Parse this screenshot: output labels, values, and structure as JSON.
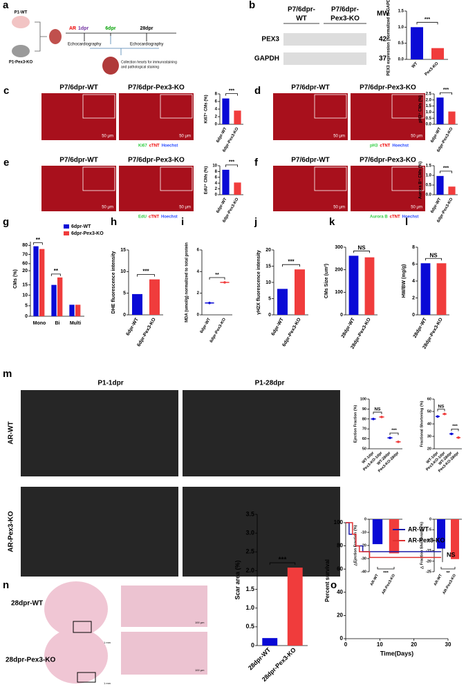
{
  "figure": {
    "panel_labels": [
      "a",
      "b",
      "c",
      "d",
      "e",
      "f",
      "g",
      "h",
      "i",
      "j",
      "k",
      "l",
      "m",
      "n",
      "o"
    ],
    "a": {
      "groups": [
        "P1-WT",
        "P1-Pex3-KO"
      ],
      "ar": "AR",
      "timepoints": [
        "1dpr",
        "6dpr",
        "28dpr"
      ],
      "echo": "Echocardiography",
      "collection": [
        "Collection hearts for immunostaining",
        "and pathological staining"
      ]
    },
    "b": {
      "columns": [
        [
          "P7/6dpr-",
          "WT"
        ],
        [
          "P7/6dpr-",
          "Pex3-KO"
        ]
      ],
      "mw": "MW",
      "rows": [
        {
          "name": "PEX3",
          "mw": 42
        },
        {
          "name": "GAPDH",
          "mw": 37
        }
      ]
    },
    "micrographs": [
      {
        "titles": [
          "P7/6dpr-WT",
          "P7/6dpr-Pex3-KO"
        ],
        "scale": "50 μm",
        "stains": [
          "Ki67",
          "cTNT",
          "Hoechst"
        ]
      },
      {
        "titles": [
          "P7/6dpr-WT",
          "P7/6dpr-Pex3-KO"
        ],
        "scale": "50 μm",
        "stains": [
          "pH3",
          "cTNT",
          "Hoechst"
        ]
      },
      {
        "titles": [
          "P7/6dpr-WT",
          "P7/6dpr-Pex3-KO"
        ],
        "scale": "50 μm",
        "stains": [
          "EdU",
          "cTNT",
          "Hoechst"
        ]
      },
      {
        "titles": [
          "P7/6dpr-WT",
          "P7/6dpr-Pex3-KO"
        ],
        "scale": "50 μm",
        "stains": [
          "Aurora B",
          "cTNT",
          "Hoechst"
        ]
      }
    ],
    "m": {
      "columns": [
        "P1-1dpr",
        "P1-28dpr"
      ],
      "rows": [
        "AR-WT",
        "AR-Pex3-KO"
      ]
    },
    "n": {
      "rows": [
        "28dpr-WT",
        "28dpr-Pex3-KO"
      ],
      "scales": [
        "1 mm",
        "100 μm"
      ]
    }
  },
  "chart_data": [
    {
      "type": "bar",
      "ylabel": "PEX3 expression (Normalized to GAPDH)",
      "categories": [
        "WT",
        "Pex3-KO"
      ],
      "values": [
        1.0,
        0.35
      ],
      "colors": [
        "#0a0ad6",
        "#f03c3c"
      ],
      "ylim": [
        0,
        1.5
      ],
      "yticks": [
        {
          "value": 0,
          "label": "0.0"
        },
        0.5,
        {
          "value": 1,
          "label": "1.0"
        },
        1.5
      ],
      "significance": "***"
    },
    {
      "type": "bar",
      "ylabel": "Ki67⁺ CMs (%)",
      "categories": [
        "6dpr-WT",
        "6dpr-Pex3-KO"
      ],
      "values": [
        6.8,
        3.6
      ],
      "colors": [
        "#0a0ad6",
        "#f03c3c"
      ],
      "ylim": [
        0,
        8
      ],
      "yticks": [
        0,
        2,
        4,
        6,
        8
      ],
      "significance": "***"
    },
    {
      "type": "bar",
      "ylabel": "pH3⁺ CMs (%)",
      "categories": [
        "6dpr-WT",
        "6dpr-Pex3-KO"
      ],
      "values": [
        2.2,
        1.05
      ],
      "colors": [
        "#0a0ad6",
        "#f03c3c"
      ],
      "ylim": [
        0,
        2.5
      ],
      "yticks": [
        {
          "value": 0,
          "label": "0.0"
        },
        0.5,
        {
          "value": 1,
          "label": "1.0"
        },
        1.5,
        {
          "value": 2,
          "label": "2.0"
        },
        2.5
      ],
      "significance": "***"
    },
    {
      "type": "bar",
      "ylabel": "EdU⁺ CMs (%)",
      "categories": [
        "6dpr-WT",
        "6dpr-Pex3-KO"
      ],
      "values": [
        8.6,
        4.2
      ],
      "colors": [
        "#0a0ad6",
        "#f03c3c"
      ],
      "ylim": [
        0,
        10
      ],
      "yticks": [
        0,
        2,
        4,
        6,
        8,
        10
      ],
      "significance": "***"
    },
    {
      "type": "bar",
      "ylabel": "Aurora B⁺ CMs (%)",
      "categories": [
        "6dpr-WT",
        "6dpr-Pex3-KO"
      ],
      "values": [
        0.97,
        0.42
      ],
      "colors": [
        "#0a0ad6",
        "#f03c3c"
      ],
      "ylim": [
        0,
        1.5
      ],
      "yticks": [
        {
          "value": 0,
          "label": "0.0"
        },
        0.5,
        {
          "value": 1,
          "label": "1.0"
        },
        1.5
      ],
      "significance": "***"
    },
    {
      "type": "bar",
      "ylabel": "CMs (%)",
      "categories": [
        "Mono",
        "Bi",
        "Multi"
      ],
      "series": [
        {
          "name": "6dpr-WT",
          "color": "#0a0ad6",
          "values": [
            79,
            15,
            5.5
          ]
        },
        {
          "name": "6dpr-Pex3-KO",
          "color": "#f03c3c",
          "values": [
            76,
            17,
            5.5
          ]
        }
      ],
      "ylim": [
        0,
        84
      ],
      "y_segments": [
        [
          0,
          15
        ],
        [
          15,
          21
        ],
        [
          58,
          84
        ]
      ],
      "yticks": [
        0,
        5,
        10,
        15,
        20,
        60,
        70,
        80
      ],
      "significance": [
        "**",
        "**"
      ]
    },
    {
      "type": "bar",
      "ylabel": "DHE fluorescence intensity",
      "categories": [
        "6dpr-WT",
        "6dpr-Pex3-KO"
      ],
      "values": [
        4.8,
        8.2
      ],
      "colors": [
        "#0a0ad6",
        "#f03c3c"
      ],
      "ylim": [
        0,
        15
      ],
      "yticks": [
        0,
        5,
        10,
        15
      ],
      "significance": "***"
    },
    {
      "type": "dot",
      "ylabel": "MDA (umol/g) normalized to total protein",
      "categories": [
        "6dpr-WT",
        "6dpr-Pex3-KO"
      ],
      "values": [
        1.1,
        3.0
      ],
      "colors": [
        "#0a0ad6",
        "#f03c3c"
      ],
      "ylim": [
        0,
        6
      ],
      "yticks": [
        0,
        2,
        4,
        6
      ],
      "significance": "**"
    },
    {
      "type": "bar",
      "ylabel": "γH2X fluorescence intensity",
      "categories": [
        "6dpr-WT",
        "6dpr-Pex3-KO"
      ],
      "values": [
        8,
        14
      ],
      "colors": [
        "#0a0ad6",
        "#f03c3c"
      ],
      "ylim": [
        0,
        20
      ],
      "yticks": [
        0,
        5,
        10,
        15,
        20
      ],
      "significance": "***"
    },
    {
      "type": "bar",
      "ylabel": "CMs Size (um²)",
      "categories": [
        "28dpr-WT",
        "28dpr-Pex3-KO"
      ],
      "values": [
        262,
        255
      ],
      "colors": [
        "#0a0ad6",
        "#f03c3c"
      ],
      "ylim": [
        0,
        300
      ],
      "yticks": [
        0,
        100,
        200,
        300
      ],
      "significance": "NS"
    },
    {
      "type": "bar",
      "ylabel": "HW/BW (mg/g)",
      "categories": [
        "28dpr-WT",
        "28dpr-Pex3-KO"
      ],
      "values": [
        6.1,
        6.1
      ],
      "colors": [
        "#0a0ad6",
        "#f03c3c"
      ],
      "ylim": [
        0,
        8
      ],
      "yticks": [
        0,
        2,
        4,
        6,
        8
      ],
      "significance": "NS"
    },
    {
      "type": "dot",
      "ylabel": "Ejection Fraction (%)",
      "categories": [
        "WT-1dpr",
        "Pex3-KO-1dpr",
        "WT-28dpr",
        "Pex3-KO-28dpr"
      ],
      "values": [
        80,
        82,
        61,
        57
      ],
      "colors": [
        "#0a0ad6",
        "#f03c3c",
        "#0a0ad6",
        "#f03c3c"
      ],
      "ylim": [
        50,
        100
      ],
      "yticks": [
        50,
        60,
        70,
        80,
        90,
        100
      ],
      "significance": [
        "NS",
        "***"
      ]
    },
    {
      "type": "dot",
      "ylabel": "Fractional Shortening (%)",
      "categories": [
        "WT-1dpr",
        "Pex3-KO-1dpr",
        "WT-28dpr",
        "Pex3-KO-28dpr"
      ],
      "values": [
        46,
        48,
        32,
        29
      ],
      "colors": [
        "#0a0ad6",
        "#f03c3c",
        "#0a0ad6",
        "#f03c3c"
      ],
      "ylim": [
        20,
        60
      ],
      "yticks": [
        20,
        30,
        40,
        50,
        60
      ],
      "significance": [
        "NS",
        "***"
      ]
    },
    {
      "type": "bar",
      "ylabel": "△Ejection Fraction (%)",
      "categories": [
        "AR-WT",
        "AR-Pex3-KO"
      ],
      "values": [
        -19,
        -26
      ],
      "colors": [
        "#0a0ad6",
        "#f03c3c"
      ],
      "ylim": [
        -40,
        0
      ],
      "yticks": [
        -40,
        -30,
        -20,
        -10,
        0
      ],
      "significance": "***"
    },
    {
      "type": "bar",
      "ylabel": "△ Fraction Shortening (%)",
      "categories": [
        "AR-WT",
        "AR-Pex3-KO"
      ],
      "values": [
        -14,
        -19
      ],
      "colors": [
        "#0a0ad6",
        "#f03c3c"
      ],
      "ylim": [
        -25,
        0
      ],
      "yticks": [
        -25,
        -20,
        -15,
        -10,
        -5,
        0
      ],
      "significance": "**"
    },
    {
      "type": "bar",
      "ylabel": "Scar area (%)",
      "categories": [
        "28dpr-WT",
        "28dpr-Pex3-KO"
      ],
      "values": [
        0.2,
        2.08
      ],
      "colors": [
        "#0a0ad6",
        "#f03c3c"
      ],
      "ylim": [
        0,
        3.5
      ],
      "yticks": [
        0,
        0.5,
        {
          "value": 1,
          "label": "1.0"
        },
        1.5,
        {
          "value": 2,
          "label": "2.0"
        },
        2.5,
        {
          "value": 3,
          "label": "3.0"
        },
        3.5
      ],
      "significance": "***"
    },
    {
      "type": "step",
      "ylabel": "Percent survival",
      "xlabel": "Time(Days)",
      "xlim": [
        0,
        30
      ],
      "xticks": [
        0,
        10,
        20,
        30
      ],
      "ylim": [
        0,
        100
      ],
      "yticks": [
        0,
        20,
        40,
        60,
        80,
        100
      ],
      "series": [
        {
          "name": "AR-WT",
          "color": "#1a1aa8",
          "x": [
            0,
            1,
            3,
            5,
            28
          ],
          "values": [
            100,
            90,
            80,
            75,
            75
          ]
        },
        {
          "name": "AR-Pex3-KO",
          "color": "#e03030",
          "x": [
            0,
            2,
            3,
            4,
            7,
            28
          ],
          "values": [
            100,
            90,
            80,
            75,
            70,
            70
          ]
        }
      ],
      "significance": "NS"
    }
  ]
}
